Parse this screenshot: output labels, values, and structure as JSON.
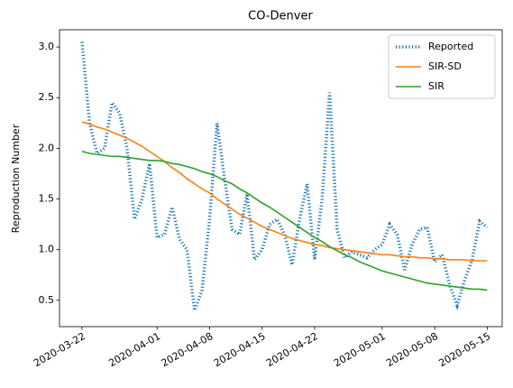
{
  "chart_data": {
    "type": "line",
    "title": "CO-Denver",
    "ylabel": "Reproduction Number",
    "x": [
      "2020-03-22",
      "2020-03-23",
      "2020-03-24",
      "2020-03-25",
      "2020-03-26",
      "2020-03-27",
      "2020-03-28",
      "2020-03-29",
      "2020-03-30",
      "2020-03-31",
      "2020-04-01",
      "2020-04-02",
      "2020-04-03",
      "2020-04-04",
      "2020-04-05",
      "2020-04-06",
      "2020-04-07",
      "2020-04-08",
      "2020-04-09",
      "2020-04-10",
      "2020-04-11",
      "2020-04-12",
      "2020-04-13",
      "2020-04-14",
      "2020-04-15",
      "2020-04-16",
      "2020-04-17",
      "2020-04-18",
      "2020-04-19",
      "2020-04-20",
      "2020-04-21",
      "2020-04-22",
      "2020-04-23",
      "2020-04-24",
      "2020-04-25",
      "2020-04-26",
      "2020-04-27",
      "2020-04-28",
      "2020-04-29",
      "2020-04-30",
      "2020-05-01",
      "2020-05-02",
      "2020-05-03",
      "2020-05-04",
      "2020-05-05",
      "2020-05-06",
      "2020-05-07",
      "2020-05-08",
      "2020-05-09",
      "2020-05-10",
      "2020-05-11",
      "2020-05-12",
      "2020-05-13",
      "2020-05-14",
      "2020-05-15"
    ],
    "series": [
      {
        "name": "Reported",
        "color": "#1f77b4",
        "style": "dotted",
        "values": [
          3.05,
          2.25,
          1.95,
          2.0,
          2.45,
          2.35,
          2.0,
          1.3,
          1.5,
          1.85,
          1.12,
          1.15,
          1.42,
          1.1,
          1.0,
          0.4,
          0.6,
          1.3,
          2.25,
          1.7,
          1.2,
          1.15,
          1.55,
          0.9,
          1.0,
          1.25,
          1.3,
          1.15,
          0.85,
          1.3,
          1.65,
          0.9,
          1.5,
          2.55,
          1.2,
          0.92,
          0.98,
          0.95,
          0.92,
          1.0,
          1.05,
          1.25,
          1.15,
          0.8,
          1.05,
          1.2,
          1.22,
          0.88,
          0.95,
          0.65,
          0.45,
          0.7,
          0.9,
          1.28,
          1.22
        ]
      },
      {
        "name": "SIR-SD",
        "color": "#ff7f0e",
        "style": "solid",
        "values": [
          2.26,
          2.24,
          2.21,
          2.19,
          2.16,
          2.13,
          2.1,
          2.06,
          2.02,
          1.97,
          1.92,
          1.87,
          1.81,
          1.76,
          1.7,
          1.65,
          1.6,
          1.56,
          1.5,
          1.45,
          1.4,
          1.35,
          1.31,
          1.27,
          1.23,
          1.2,
          1.17,
          1.14,
          1.11,
          1.09,
          1.07,
          1.05,
          1.04,
          1.02,
          1.01,
          1.0,
          0.99,
          0.98,
          0.97,
          0.96,
          0.95,
          0.95,
          0.94,
          0.93,
          0.93,
          0.92,
          0.92,
          0.91,
          0.91,
          0.9,
          0.9,
          0.9,
          0.89,
          0.89,
          0.89
        ]
      },
      {
        "name": "SIR",
        "color": "#2ca02c",
        "style": "solid",
        "values": [
          1.97,
          1.95,
          1.94,
          1.93,
          1.92,
          1.92,
          1.91,
          1.9,
          1.89,
          1.88,
          1.88,
          1.87,
          1.85,
          1.84,
          1.82,
          1.8,
          1.77,
          1.75,
          1.72,
          1.68,
          1.65,
          1.6,
          1.56,
          1.51,
          1.46,
          1.42,
          1.37,
          1.32,
          1.27,
          1.22,
          1.17,
          1.12,
          1.08,
          1.03,
          0.99,
          0.95,
          0.92,
          0.88,
          0.85,
          0.82,
          0.79,
          0.77,
          0.75,
          0.73,
          0.71,
          0.69,
          0.67,
          0.66,
          0.65,
          0.64,
          0.63,
          0.62,
          0.61,
          0.61,
          0.6
        ]
      }
    ],
    "xlim": [
      "2020-03-19",
      "2020-05-17"
    ],
    "xticks": [
      "2020-03-22",
      "2020-04-01",
      "2020-04-08",
      "2020-04-15",
      "2020-04-22",
      "2020-05-01",
      "2020-05-08",
      "2020-05-15"
    ],
    "ylim": [
      0.24,
      3.17
    ],
    "yticks": [
      {
        "value": 0.5,
        "label": "0.5"
      },
      {
        "value": 1,
        "label": "1.0"
      },
      {
        "value": 1.5,
        "label": "1.5"
      },
      {
        "value": 2,
        "label": "2.0"
      },
      {
        "value": 2.5,
        "label": "2.5"
      },
      {
        "value": 3,
        "label": "3.0"
      }
    ],
    "legend": "upper right",
    "grid": false
  }
}
